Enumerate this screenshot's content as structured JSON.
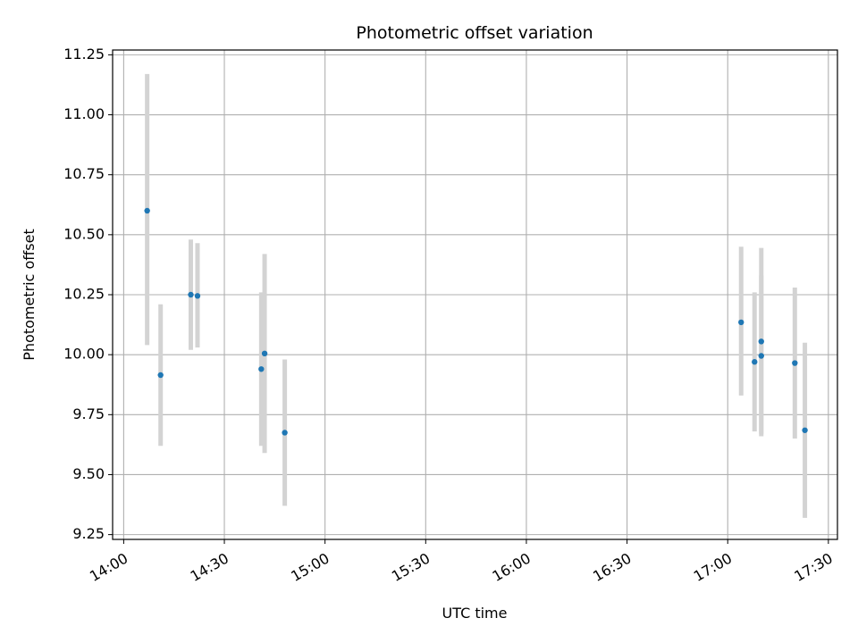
{
  "chart_data": {
    "type": "scatter",
    "title": "Photometric offset variation",
    "xlabel": "UTC time",
    "ylabel": "Photometric offset",
    "x_ticks": [
      "14:00",
      "14:30",
      "15:00",
      "15:30",
      "16:00",
      "16:30",
      "17:00",
      "17:30"
    ],
    "x_tick_minutes": [
      840,
      870,
      900,
      930,
      960,
      990,
      1020,
      1050
    ],
    "xlim_minutes": [
      836.7,
      1052.7
    ],
    "y_ticks": [
      "9.25",
      "9.50",
      "9.75",
      "10.00",
      "10.25",
      "10.50",
      "10.75",
      "11.00",
      "11.25"
    ],
    "y_tick_values": [
      9.25,
      9.5,
      9.75,
      10.0,
      10.25,
      10.5,
      10.75,
      11.0,
      11.25
    ],
    "ylim": [
      9.23,
      11.27
    ],
    "grid": true,
    "marker_color": "#1f77b4",
    "errorbar_color": "#d3d3d3",
    "points": [
      {
        "time": "14:07",
        "y": 10.6,
        "low": 10.04,
        "high": 11.17
      },
      {
        "time": "14:11",
        "y": 9.915,
        "low": 9.62,
        "high": 10.21
      },
      {
        "time": "14:20",
        "y": 10.25,
        "low": 10.02,
        "high": 10.48
      },
      {
        "time": "14:22",
        "y": 10.245,
        "low": 10.03,
        "high": 10.465
      },
      {
        "time": "14:41",
        "y": 9.94,
        "low": 9.62,
        "high": 10.26
      },
      {
        "time": "14:42",
        "y": 10.005,
        "low": 9.59,
        "high": 10.42
      },
      {
        "time": "14:48",
        "y": 9.675,
        "low": 9.37,
        "high": 9.98
      },
      {
        "time": "17:04",
        "y": 10.135,
        "low": 9.83,
        "high": 10.45
      },
      {
        "time": "17:08",
        "y": 9.97,
        "low": 9.68,
        "high": 10.26
      },
      {
        "time": "17:10",
        "y": 10.055,
        "low": 9.67,
        "high": 10.445
      },
      {
        "time": "17:10",
        "y": 9.995,
        "low": 9.66,
        "high": 10.33
      },
      {
        "time": "17:20",
        "y": 9.965,
        "low": 9.65,
        "high": 10.28
      },
      {
        "time": "17:23",
        "y": 9.685,
        "low": 9.32,
        "high": 10.05
      }
    ]
  }
}
